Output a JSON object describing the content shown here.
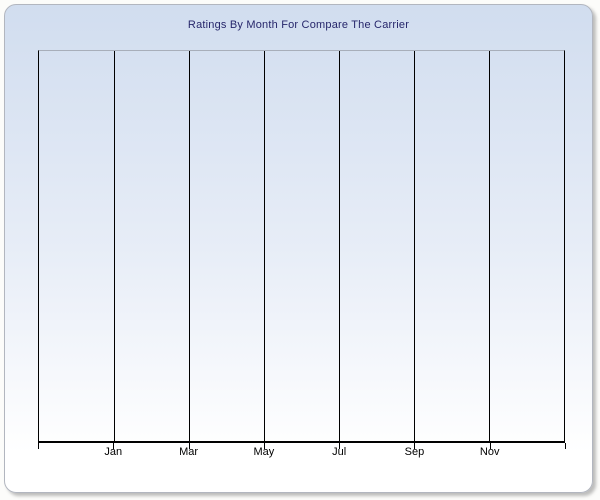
{
  "page": {
    "background": "#fcfcfa"
  },
  "panel": {
    "title": "Ratings By Month For Compare The Carrier",
    "title_color": "#26266b",
    "border_color": "#b2b6bf",
    "gradient_top": "#d1ddef",
    "gradient_bottom": "#ffffff"
  },
  "chart_data": {
    "type": "line",
    "title": "Ratings By Month For Compare The Carrier",
    "x_axis": {
      "tick_labels": [
        "Jan",
        "Mar",
        "May",
        "Jul",
        "Sep",
        "Nov"
      ],
      "gridline_count": 8,
      "labeled_gridline_indexes": [
        1,
        2,
        3,
        4,
        5,
        6
      ],
      "axis_color": "#000000",
      "label_color": "#000000"
    },
    "y_axis": {
      "tick_labels": [],
      "labels_visible": false
    },
    "series": [],
    "grid": "vertical",
    "legend": "none",
    "gridline_color": "#000000",
    "plot_top_border_color": "#a8aeba",
    "plot_background": "gradient-continuous-with-panel"
  }
}
